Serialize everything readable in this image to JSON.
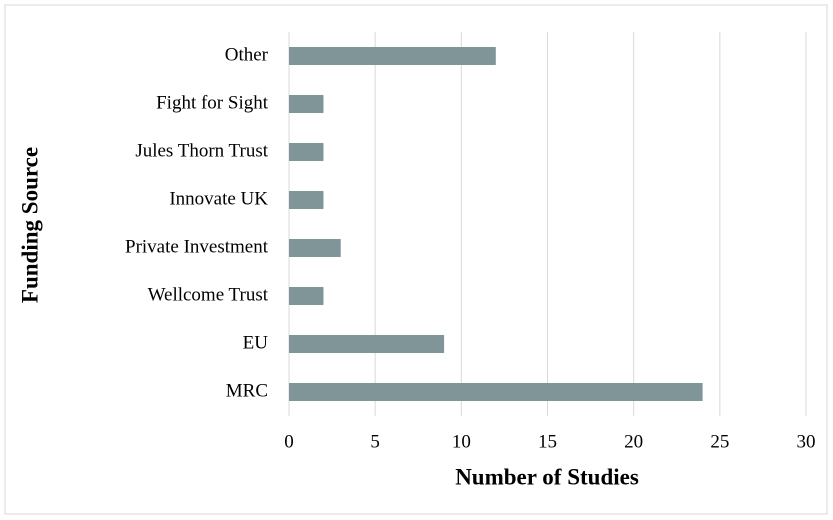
{
  "chart_data": {
    "type": "hbar",
    "categories": [
      "Other",
      "Fight for Sight",
      "Jules Thorn Trust",
      "Innovate UK",
      "Private Investment",
      "Wellcome Trust",
      "EU",
      "MRC"
    ],
    "values": [
      12,
      2,
      2,
      2,
      3,
      2,
      9,
      24
    ],
    "color": "#7f9598",
    "x_label": "Number of Studies",
    "y_label": "Funding Source",
    "xlim": [
      0,
      30
    ],
    "xticks": [
      0,
      5,
      10,
      15,
      20,
      25,
      30
    ],
    "grid": true
  }
}
